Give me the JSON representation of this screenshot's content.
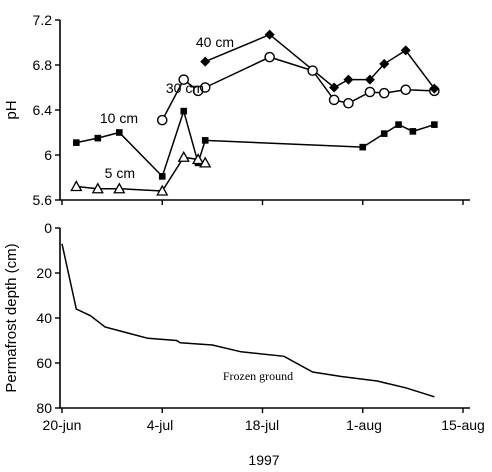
{
  "chart_data": [
    {
      "type": "line",
      "ylabel": "pH",
      "ylim": [
        5.6,
        7.2
      ],
      "yticks": [
        "5.6",
        "6",
        "6.4",
        "6.8",
        "7.2"
      ],
      "x_unit": "day of year 1997",
      "series": [
        {
          "name": "5 cm",
          "marker": "open-triangle",
          "x": [
            173,
            176,
            179,
            185,
            188,
            190,
            191
          ],
          "y": [
            5.72,
            5.7,
            5.7,
            5.68,
            5.98,
            5.96,
            5.93
          ]
        },
        {
          "name": "10 cm",
          "marker": "filled-square",
          "x": [
            173,
            176,
            179,
            185,
            188,
            190,
            191,
            213,
            216,
            218,
            220,
            223
          ],
          "y": [
            6.11,
            6.15,
            6.2,
            5.81,
            6.39,
            5.93,
            6.13,
            6.07,
            6.19,
            6.27,
            6.21,
            6.27
          ]
        },
        {
          "name": "30 cm",
          "marker": "open-circle",
          "x": [
            185,
            188,
            190,
            191,
            200,
            206,
            209,
            211,
            214,
            216,
            219,
            223
          ],
          "y": [
            6.31,
            6.67,
            6.57,
            6.6,
            6.87,
            6.75,
            6.49,
            6.46,
            6.56,
            6.55,
            6.58,
            6.57
          ]
        },
        {
          "name": "40 cm",
          "marker": "filled-diamond",
          "x": [
            191,
            200,
            209,
            211,
            214,
            216,
            219,
            223
          ],
          "y": [
            6.83,
            7.07,
            6.6,
            6.67,
            6.67,
            6.81,
            6.93,
            6.59
          ]
        }
      ]
    },
    {
      "type": "line",
      "ylabel": "Permafrost depth (cm)",
      "xlabel": "1997",
      "ylim": [
        0,
        80
      ],
      "y_inverted": true,
      "yticks": [
        "0",
        "20",
        "40",
        "60",
        "80"
      ],
      "xticks": [
        "20-jun",
        "4-jul",
        "18-jul",
        "1-aug",
        "15-aug"
      ],
      "x_unit": "day of year 1997",
      "annotation": "Frozen ground",
      "series": [
        {
          "x": [
            171,
            173,
            175,
            177,
            183,
            187,
            187.5,
            192,
            196,
            202,
            206,
            210,
            215,
            219,
            223
          ],
          "y": [
            7,
            36,
            39,
            44,
            49,
            50,
            51,
            52,
            55,
            57,
            64,
            66,
            68,
            71,
            75
          ]
        }
      ]
    }
  ]
}
